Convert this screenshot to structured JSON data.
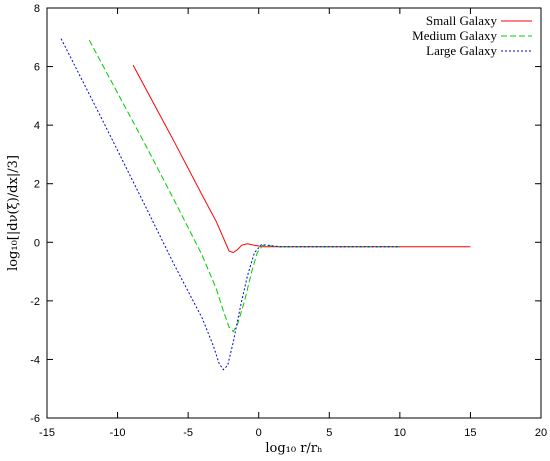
{
  "chart_data": {
    "type": "line",
    "title": "",
    "xlabel": "log₁₀ r/rₕ",
    "ylabel": "log₁₀[|dν(ξ)/dx|/3]",
    "xlim": [
      -15,
      20
    ],
    "ylim": [
      -6,
      8
    ],
    "x_ticks": [
      -15,
      -10,
      -5,
      0,
      5,
      10,
      15,
      20
    ],
    "y_ticks": [
      -6,
      -4,
      -2,
      0,
      2,
      4,
      6,
      8
    ],
    "x_tick_labels": [
      "-15",
      "-10",
      "-5",
      "0",
      "5",
      "10",
      "15",
      "20"
    ],
    "y_tick_labels": [
      "-6",
      "-4",
      "-2",
      "0",
      "2",
      "4",
      "6",
      "8"
    ],
    "grid": false,
    "legend_position": "top-right",
    "series": [
      {
        "name": "Small Galaxy",
        "color": "#ff0000",
        "dash": "solid",
        "points": [
          [
            -8.9,
            6.05
          ],
          [
            -6.0,
            3.45
          ],
          [
            -4.0,
            1.6
          ],
          [
            -3.0,
            0.7
          ],
          [
            -2.5,
            0.15
          ],
          [
            -2.1,
            -0.3
          ],
          [
            -1.8,
            -0.35
          ],
          [
            -1.5,
            -0.25
          ],
          [
            -1.2,
            -0.1
          ],
          [
            -0.8,
            -0.05
          ],
          [
            -0.3,
            -0.1
          ],
          [
            0.3,
            -0.15
          ],
          [
            1.0,
            -0.15
          ],
          [
            5.0,
            -0.15
          ],
          [
            10.0,
            -0.15
          ],
          [
            15.0,
            -0.15
          ]
        ]
      },
      {
        "name": "Medium Galaxy",
        "color": "#00cc00",
        "dash": "dashed",
        "points": [
          [
            -12.0,
            6.9
          ],
          [
            -8.0,
            3.3
          ],
          [
            -6.0,
            1.45
          ],
          [
            -4.0,
            -0.45
          ],
          [
            -3.0,
            -1.6
          ],
          [
            -2.5,
            -2.35
          ],
          [
            -2.1,
            -2.9
          ],
          [
            -1.8,
            -3.05
          ],
          [
            -1.5,
            -2.8
          ],
          [
            -1.0,
            -2.0
          ],
          [
            -0.5,
            -1.0
          ],
          [
            -0.1,
            -0.35
          ],
          [
            0.3,
            -0.1
          ],
          [
            0.7,
            -0.12
          ],
          [
            1.5,
            -0.15
          ],
          [
            5.0,
            -0.15
          ],
          [
            10.0,
            -0.15
          ]
        ]
      },
      {
        "name": "Large Galaxy",
        "color": "#0000dd",
        "dash": "dotted",
        "points": [
          [
            -14.0,
            6.95
          ],
          [
            -11.0,
            4.1
          ],
          [
            -8.0,
            1.2
          ],
          [
            -6.0,
            -0.75
          ],
          [
            -4.0,
            -2.6
          ],
          [
            -3.2,
            -3.55
          ],
          [
            -2.8,
            -4.15
          ],
          [
            -2.5,
            -4.35
          ],
          [
            -2.2,
            -4.2
          ],
          [
            -1.8,
            -3.4
          ],
          [
            -1.3,
            -2.2
          ],
          [
            -0.8,
            -1.15
          ],
          [
            -0.3,
            -0.35
          ],
          [
            0.2,
            -0.08
          ],
          [
            0.6,
            -0.1
          ],
          [
            1.5,
            -0.15
          ],
          [
            5.0,
            -0.15
          ],
          [
            10.0,
            -0.15
          ]
        ]
      }
    ]
  }
}
